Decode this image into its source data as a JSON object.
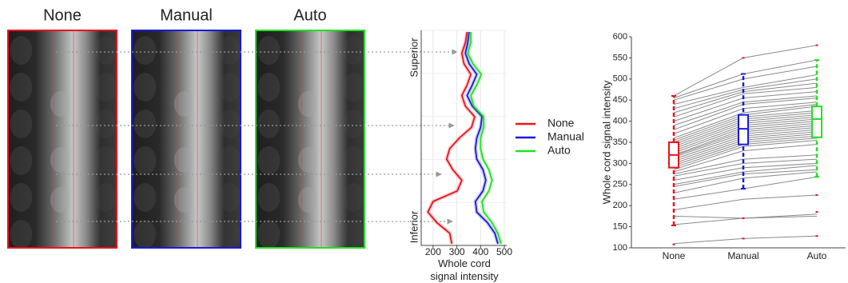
{
  "image_panels": [
    {
      "title": "None",
      "color": "#e8141c"
    },
    {
      "title": "Manual",
      "color": "#1a1adc"
    },
    {
      "title": "Auto",
      "color": "#22e022"
    }
  ],
  "chart_data": [
    {
      "type": "profile",
      "orientation": "vertical",
      "top_label": "Superior",
      "bottom_label": "Inferior",
      "xlabel": "Whole cord signal intensity",
      "xlim": [
        150,
        510
      ],
      "xticks": [
        200,
        300,
        400,
        500
      ],
      "grid": true,
      "categories": [
        null,
        null,
        null,
        null,
        null,
        null,
        null,
        null,
        null,
        null,
        null,
        null,
        null,
        null,
        null,
        null,
        null,
        null,
        null,
        null,
        null
      ],
      "series": [
        {
          "name": "None",
          "color": "#e8141c",
          "values": [
            343,
            336,
            321,
            330,
            359,
            343,
            321,
            336,
            375,
            362,
            311,
            270,
            257,
            283,
            321,
            302,
            200,
            178,
            216,
            270,
            279
          ]
        },
        {
          "name": "Manual",
          "color": "#1a1adc",
          "values": [
            352,
            346,
            336,
            352,
            384,
            365,
            343,
            365,
            406,
            400,
            384,
            378,
            384,
            410,
            422,
            410,
            378,
            384,
            429,
            460,
            473
          ]
        },
        {
          "name": "Auto",
          "color": "#22e022",
          "values": [
            359,
            359,
            346,
            368,
            403,
            384,
            359,
            371,
            413,
            413,
            400,
            400,
            410,
            435,
            448,
            435,
            406,
            413,
            448,
            473,
            486
          ]
        }
      ]
    },
    {
      "type": "box",
      "ylabel": "Whole cord signal intensity",
      "ylim": [
        100,
        600
      ],
      "yticks": [
        100,
        150,
        200,
        250,
        300,
        350,
        400,
        450,
        500,
        550,
        600
      ],
      "categories": [
        "None",
        "Manual",
        "Auto"
      ],
      "colors": [
        "#e8141c",
        "#1a1adc",
        "#22e022"
      ],
      "outlier_color": "#e8141c",
      "line_color": "#8a8a8a",
      "boxes": [
        {
          "low": 153,
          "q1": 290,
          "median": 320,
          "q3": 350,
          "high": 460
        },
        {
          "low": 240,
          "q1": 345,
          "median": 382,
          "q3": 415,
          "high": 512
        },
        {
          "low": 268,
          "q1": 362,
          "median": 405,
          "q3": 435,
          "high": 545
        }
      ],
      "outliers": [
        [
          108
        ],
        [
          550,
          170,
          122
        ],
        [
          580,
          225,
          185,
          128
        ]
      ],
      "subjects": [
        [
          110,
          122,
          128
        ],
        [
          155,
          170,
          180
        ],
        [
          175,
          170,
          175
        ],
        [
          190,
          215,
          225
        ],
        [
          215,
          240,
          268
        ],
        [
          230,
          265,
          280
        ],
        [
          245,
          275,
          285
        ],
        [
          250,
          280,
          295
        ],
        [
          260,
          290,
          300
        ],
        [
          270,
          300,
          310
        ],
        [
          275,
          310,
          320
        ],
        [
          280,
          330,
          345
        ],
        [
          285,
          340,
          355
        ],
        [
          290,
          345,
          360
        ],
        [
          295,
          350,
          365
        ],
        [
          300,
          355,
          370
        ],
        [
          305,
          360,
          375
        ],
        [
          310,
          365,
          380
        ],
        [
          315,
          370,
          385
        ],
        [
          318,
          375,
          390
        ],
        [
          320,
          380,
          395
        ],
        [
          325,
          385,
          400
        ],
        [
          330,
          390,
          405
        ],
        [
          335,
          395,
          410
        ],
        [
          340,
          400,
          415
        ],
        [
          345,
          405,
          420
        ],
        [
          350,
          410,
          425
        ],
        [
          355,
          415,
          435
        ],
        [
          360,
          420,
          440
        ],
        [
          370,
          430,
          445
        ],
        [
          380,
          440,
          455
        ],
        [
          390,
          445,
          460
        ],
        [
          400,
          455,
          470
        ],
        [
          410,
          465,
          480
        ],
        [
          420,
          470,
          490
        ],
        [
          430,
          475,
          500
        ],
        [
          440,
          480,
          510
        ],
        [
          450,
          500,
          530
        ],
        [
          455,
          512,
          545
        ],
        [
          460,
          550,
          580
        ]
      ]
    }
  ]
}
